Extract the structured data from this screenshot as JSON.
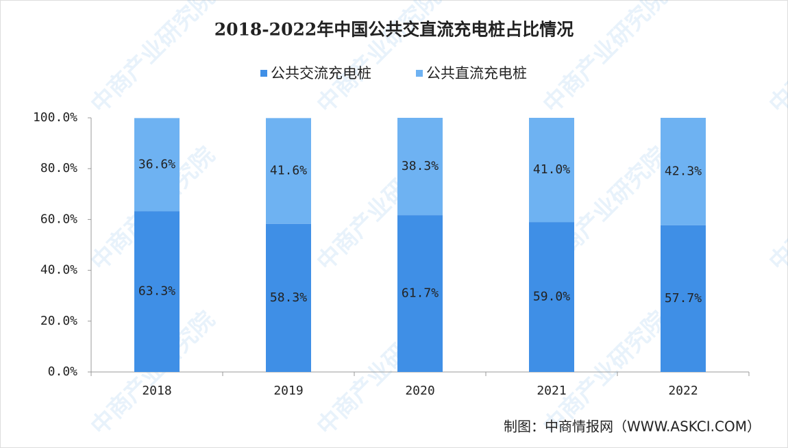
{
  "chart_data": {
    "type": "stacked_bar",
    "title": "2018-2022年中国公共交直流充电桩占比情况",
    "categories": [
      "2018",
      "2019",
      "2020",
      "2021",
      "2022"
    ],
    "series": [
      {
        "name": "公共交流充电桩",
        "color": "#3f8fe6",
        "values": [
          63.3,
          58.3,
          61.7,
          59.0,
          57.7
        ],
        "value_labels": [
          "63.3%",
          "58.3%",
          "61.7%",
          "59.0%",
          "57.7%"
        ]
      },
      {
        "name": "公共直流充电桩",
        "color": "#6eb2f2",
        "values": [
          36.6,
          41.6,
          38.3,
          41.0,
          42.3
        ],
        "value_labels": [
          "36.6%",
          "41.6%",
          "38.3%",
          "41.0%",
          "42.3%"
        ]
      }
    ],
    "ylim": [
      0,
      100
    ],
    "yticks": [
      {
        "value": 0,
        "label": "0.0%"
      },
      {
        "value": 20,
        "label": "20.0%"
      },
      {
        "value": 40,
        "label": "40.0%"
      },
      {
        "value": 60,
        "label": "60.0%"
      },
      {
        "value": 80,
        "label": "80.0%"
      },
      {
        "value": 100,
        "label": "100.0%"
      }
    ],
    "legend": "top",
    "source": "制图：中商情报网（WWW.ASKCI.COM）",
    "watermark": "中商产业研究院"
  }
}
